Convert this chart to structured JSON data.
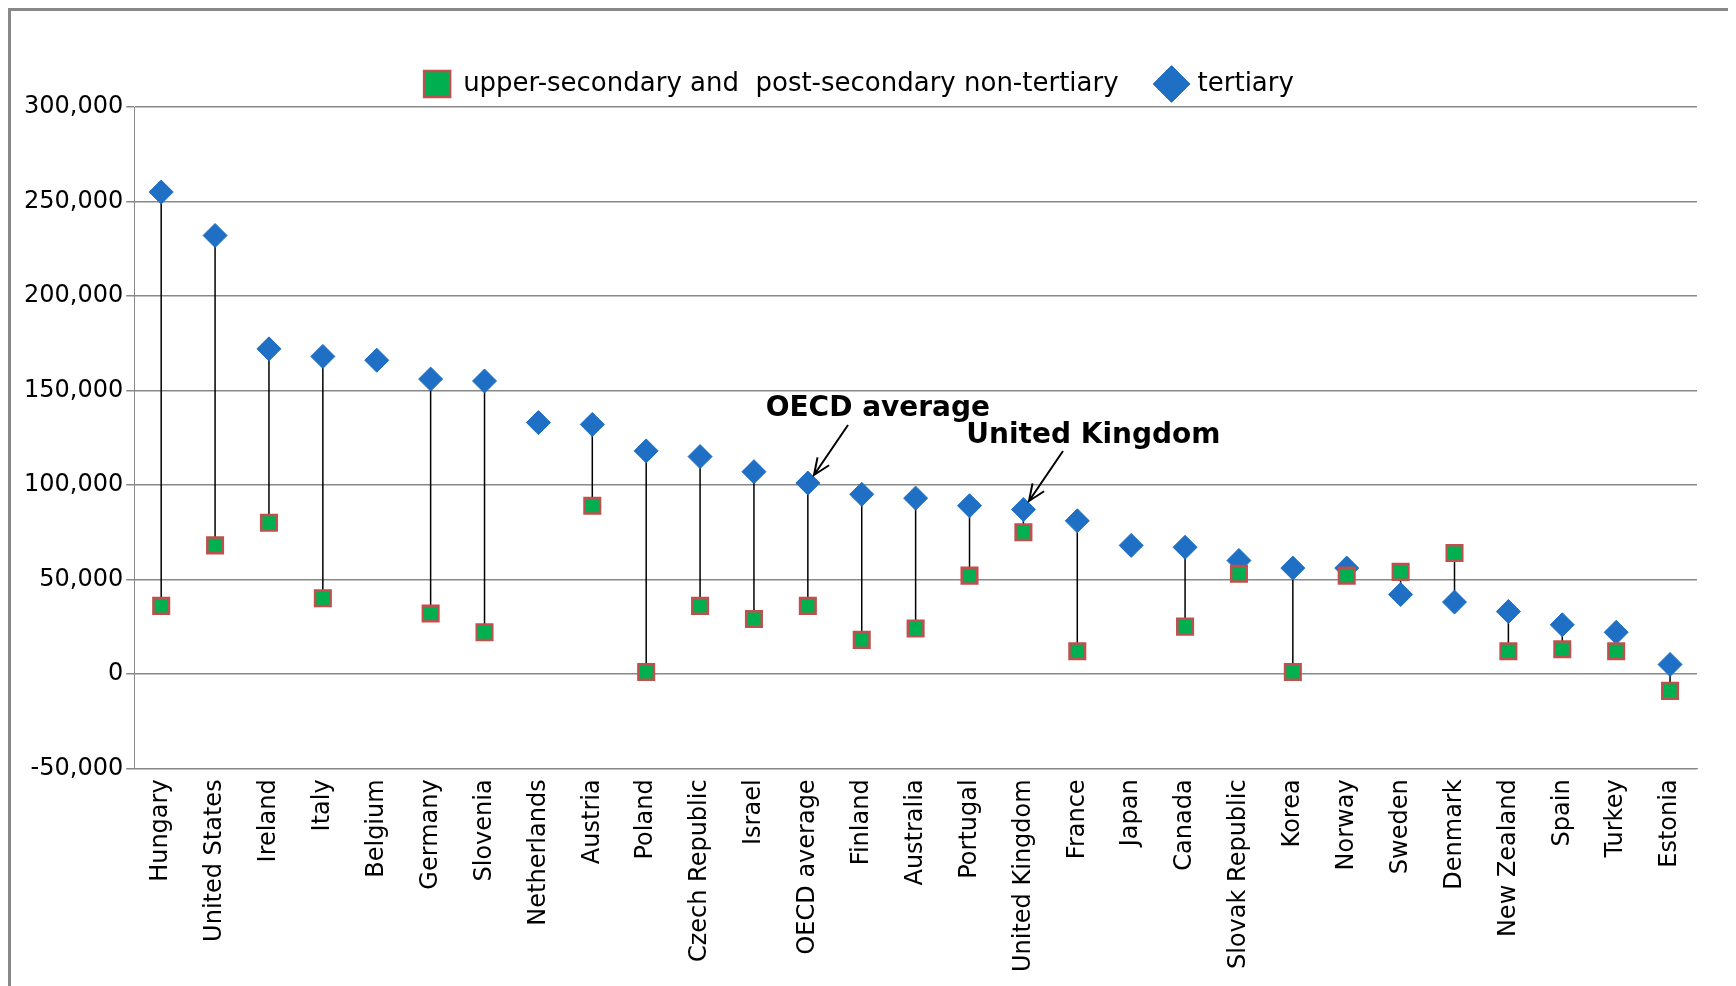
{
  "chart_data": {
    "type": "scatter",
    "categories": [
      "Hungary",
      "United States",
      "Ireland",
      "Italy",
      "Belgium",
      "Germany",
      "Slovenia",
      "Netherlands",
      "Austria",
      "Poland",
      "Czech Republic",
      "Israel",
      "OECD average",
      "Finland",
      "Australia",
      "Portugal",
      "United Kingdom",
      "France",
      "Japan",
      "Canada",
      "Slovak Republic",
      "Korea",
      "Norway",
      "Sweden",
      "Denmark",
      "New Zealand",
      "Spain",
      "Turkey",
      "Estonia"
    ],
    "series": [
      {
        "name": "tertiary",
        "color": "#1f6fc5",
        "marker": "diamond",
        "values": [
          255000,
          232000,
          172000,
          168000,
          166000,
          156000,
          155000,
          133000,
          132000,
          118000,
          115000,
          107000,
          101000,
          95000,
          93000,
          89000,
          87000,
          81000,
          68000,
          67000,
          60000,
          56000,
          56000,
          42000,
          38000,
          33000,
          26000,
          22000,
          5000
        ]
      },
      {
        "name": "upper-secondary and  post-secondary non-tertiary",
        "color": "#00b050",
        "marker": "square",
        "values": [
          36000,
          68000,
          80000,
          40000,
          null,
          32000,
          22000,
          null,
          89000,
          1000,
          36000,
          29000,
          36000,
          18000,
          24000,
          52000,
          75000,
          12000,
          null,
          25000,
          53000,
          1000,
          52000,
          54000,
          64000,
          12000,
          13000,
          12000,
          -9000
        ]
      }
    ],
    "ylim": [
      -50000,
      300000
    ],
    "yticks": [
      {
        "value": -50000,
        "label": "-50,000"
      },
      0,
      {
        "value": 50000,
        "label": "50,000"
      },
      {
        "value": 100000,
        "label": "100,000"
      },
      {
        "value": 150000,
        "label": "150,000"
      },
      {
        "value": 200000,
        "label": "200,000"
      },
      {
        "value": 250000,
        "label": "250,000"
      },
      {
        "value": 300000,
        "label": "300,000"
      }
    ],
    "grid": "y",
    "legend": "top",
    "annotations": [
      {
        "text": "OECD average",
        "x": "OECD average",
        "y": 101000
      },
      {
        "text": "United Kingdom",
        "x": "United Kingdom",
        "y": 87000
      }
    ]
  }
}
